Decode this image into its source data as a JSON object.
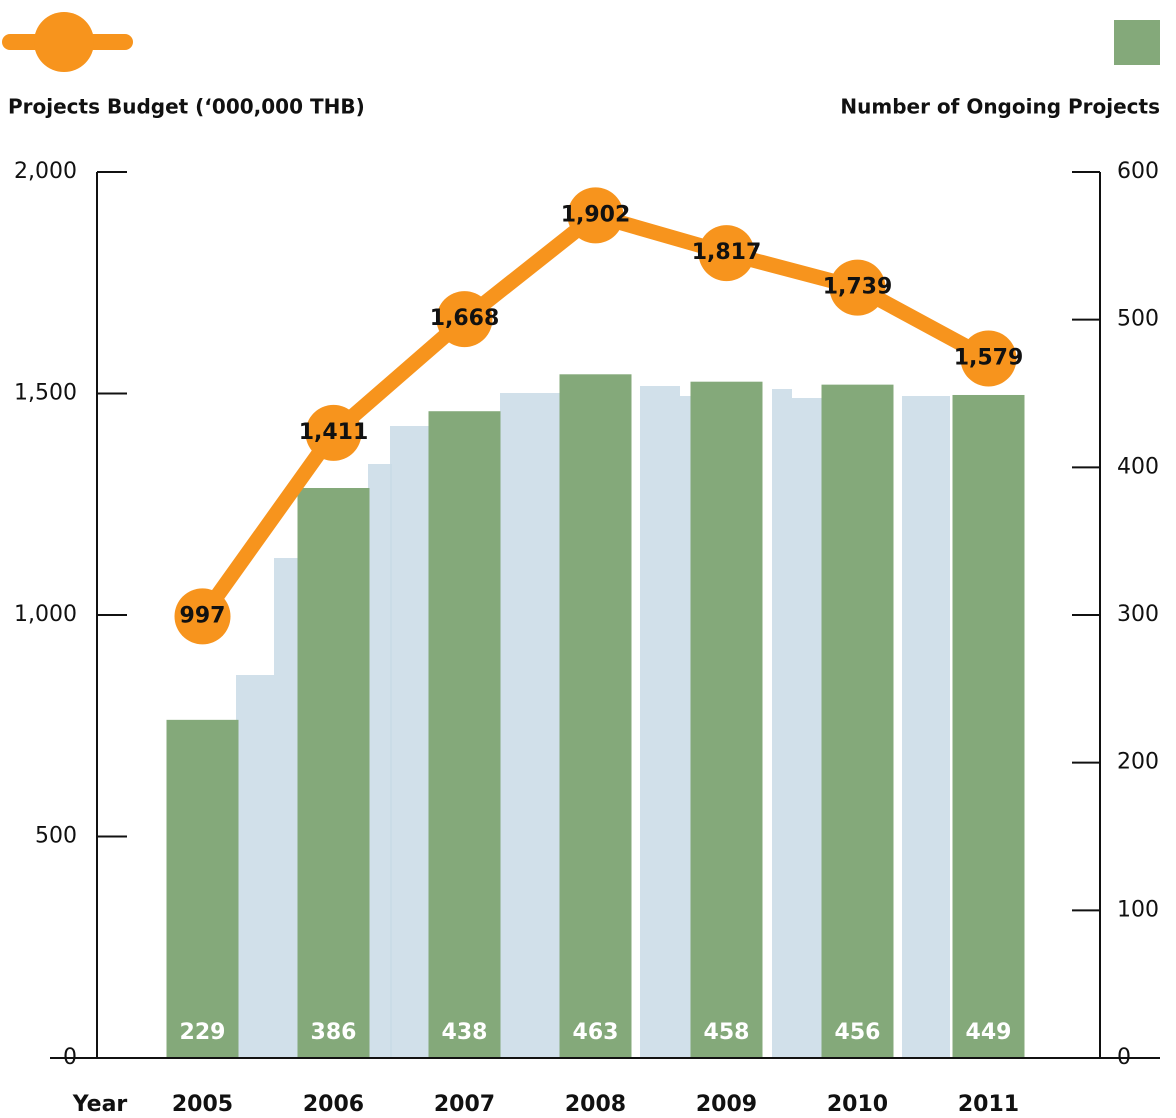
{
  "chart_data": {
    "type": "bar",
    "categories": [
      "2005",
      "2006",
      "2007",
      "2008",
      "2009",
      "2010",
      "2011"
    ],
    "xlabel": "Year",
    "series": [
      {
        "name": "Number of Ongoing Projects",
        "type": "bar",
        "axis": "y2",
        "color": "#84a97a",
        "values": [
          229,
          386,
          438,
          463,
          458,
          456,
          449
        ]
      },
      {
        "name": "Projects Budget (‘000,000 THB)",
        "type": "line",
        "color": "#f7941d",
        "values": [
          997,
          1411,
          1668,
          1902,
          1817,
          1739,
          1579
        ],
        "value_labels": [
          "997",
          "1,411",
          "1,668",
          "1,902",
          "1,817",
          "1,739",
          "1,579"
        ]
      }
    ],
    "ylim": [
      0,
      2000
    ],
    "yticks": [
      0,
      500,
      {
        "value": 1000,
        "label": "1,000"
      },
      {
        "value": 1500,
        "label": "1,500"
      },
      {
        "value": 2000,
        "label": "2,000"
      }
    ],
    "y2lim": [
      0,
      600
    ],
    "y2ticks": [
      0,
      100,
      200,
      300,
      400,
      500,
      600
    ]
  }
}
